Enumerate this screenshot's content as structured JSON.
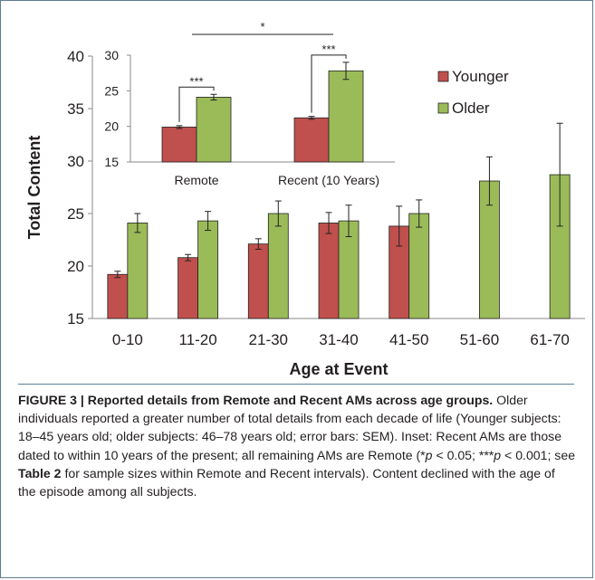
{
  "chart_data": [
    {
      "type": "bar",
      "title": "",
      "xlabel": "Age at Event",
      "ylabel": "Total Content",
      "ylim": [
        15,
        40
      ],
      "yticks": [
        "15",
        "20",
        "25",
        "30",
        "35",
        "40"
      ],
      "grid": false,
      "legend_position": "top-right",
      "categories": [
        "0-10",
        "11-20",
        "21-30",
        "31-40",
        "41-50",
        "51-60",
        "61-70"
      ],
      "series": [
        {
          "name": "Younger",
          "color": "#c0504d",
          "values": [
            19.2,
            20.8,
            22.1,
            24.1,
            23.8,
            null,
            null
          ],
          "error": [
            0.3,
            0.3,
            0.5,
            1.0,
            1.9,
            null,
            null
          ]
        },
        {
          "name": "Older",
          "color": "#9bbb59",
          "values": [
            24.1,
            24.3,
            25.0,
            24.3,
            25.0,
            28.1,
            28.7
          ],
          "error": [
            0.9,
            0.9,
            1.2,
            1.5,
            1.3,
            2.3,
            4.9
          ]
        }
      ]
    },
    {
      "type": "bar",
      "title": "",
      "xlabel": "",
      "ylabel": "",
      "ylim": [
        15,
        30
      ],
      "yticks": [
        "15",
        "20",
        "25",
        "30"
      ],
      "grid": false,
      "categories": [
        "Remote",
        "Recent (10 Years)"
      ],
      "series": [
        {
          "name": "Younger",
          "color": "#c0504d",
          "values": [
            19.9,
            21.2
          ],
          "error": [
            0.2,
            0.2
          ]
        },
        {
          "name": "Older",
          "color": "#9bbb59",
          "values": [
            24.1,
            27.8
          ],
          "error": [
            0.4,
            1.2
          ]
        }
      ],
      "annotations": [
        "***",
        "***",
        "*"
      ]
    }
  ],
  "caption": {
    "heading": "FIGURE 3 | Reported details from Remote and Recent AMs across age groups.",
    "text_1": " Older individuals reported a greater number of total details from each decade of life (Younger subjects: 18–45 years old; older subjects: 46–78 years old; error bars: SEM). Inset: Recent AMs are those dated to within 10 years of the present; all remaining AMs are Remote (*",
    "p1": "p",
    "text_2": " < 0.05; ***",
    "p2": "p",
    "text_3": " < 0.001; see ",
    "table_ref": "Table 2",
    "text_4": " for sample sizes within Remote and Recent intervals). Content declined with the age of the episode among all subjects."
  }
}
